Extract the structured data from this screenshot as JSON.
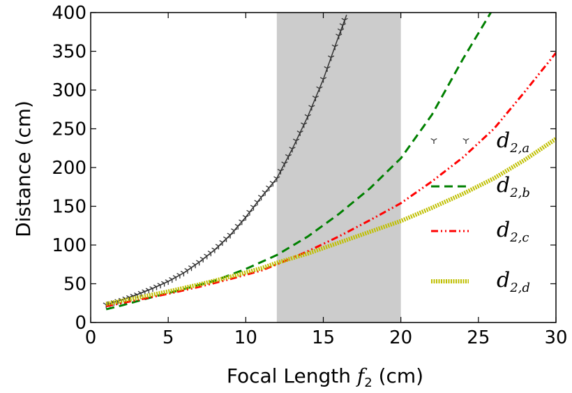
{
  "chart_data": {
    "type": "line",
    "xlabel_prefix": "Focal Length ",
    "xlabel_var": "f",
    "xlabel_sub": "2",
    "xlabel_suffix": " (cm)",
    "ylabel": "Distance (cm)",
    "xlim": [
      0,
      30
    ],
    "ylim": [
      0,
      400
    ],
    "xticks": [
      0,
      5,
      10,
      15,
      20,
      25,
      30
    ],
    "yticks": [
      0,
      50,
      100,
      150,
      200,
      250,
      300,
      350,
      400
    ],
    "shaded_region": {
      "x_start": 12,
      "x_end": 20,
      "color": "#cccccc"
    },
    "grid": false,
    "legend_position": "right",
    "series": [
      {
        "name": "d",
        "sub": "2,a",
        "color": "#333333",
        "style": "tri-markers",
        "x": [
          1,
          2,
          3,
          4,
          5,
          6,
          7,
          8,
          9,
          10,
          11,
          12,
          13,
          14,
          15,
          16,
          16.5
        ],
        "y": [
          23,
          29,
          36,
          44,
          53,
          64,
          78,
          94,
          113,
          136,
          162,
          186,
          224,
          266,
          314,
          370,
          397
        ]
      },
      {
        "name": "d",
        "sub": "2,b",
        "color": "#008000",
        "style": "dashed",
        "x": [
          1,
          2,
          4,
          6,
          8,
          10,
          12,
          14,
          16,
          18,
          20,
          22,
          24,
          25.8
        ],
        "y": [
          17,
          22,
          33,
          43,
          54,
          69,
          87,
          111,
          140,
          173,
          212,
          268,
          340,
          400
        ]
      },
      {
        "name": "d",
        "sub": "2,c",
        "color": "#ff0000",
        "style": "dash-dot-dot",
        "x": [
          1,
          3,
          5,
          7,
          9,
          11,
          12,
          14,
          16,
          18,
          20,
          22,
          24,
          26,
          28,
          30
        ],
        "y": [
          21,
          29,
          37,
          46,
          56,
          67,
          75,
          92,
          111,
          132,
          154,
          182,
          213,
          250,
          298,
          348
        ]
      },
      {
        "name": "d",
        "sub": "2,d",
        "color": "#bfbf00",
        "style": "thick-dotted",
        "x": [
          1,
          3,
          5,
          7,
          9,
          11,
          12,
          14,
          16,
          18,
          20,
          22,
          24,
          26,
          28,
          30
        ],
        "y": [
          24,
          32,
          40,
          49,
          59,
          70,
          77,
          89,
          103,
          117,
          131,
          148,
          166,
          186,
          210,
          237
        ]
      }
    ]
  }
}
